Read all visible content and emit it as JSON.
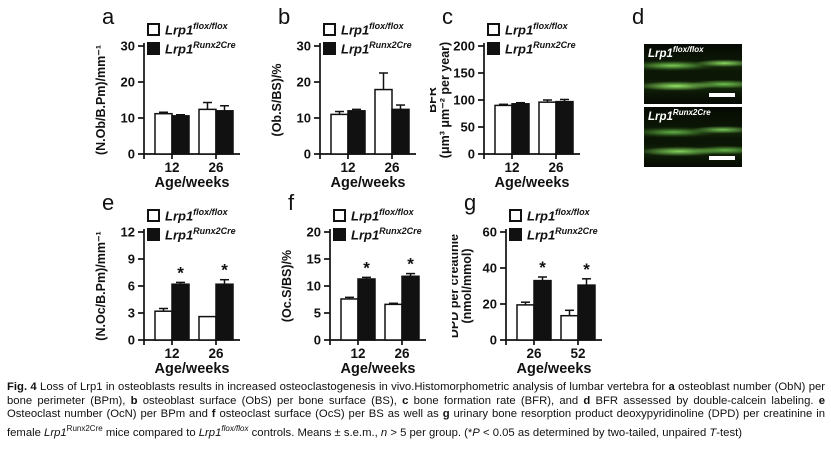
{
  "figure": {
    "background": "#ffffff",
    "text_color": "#111111",
    "legend": {
      "control": {
        "base": "Lrp1",
        "sup": "flox/flox"
      },
      "mutant": {
        "base": "Lrp1",
        "sup": "Runx2Cre"
      }
    },
    "panel_d": {
      "label": "d",
      "calcein_color": "#4db82e",
      "images": [
        {
          "base": "Lrp1",
          "sup": "flox/flox"
        },
        {
          "base": "Lrp1",
          "sup": "Runx2Cre"
        }
      ]
    },
    "caption_segments": [
      {
        "t": "Fig. 4",
        "s": "bold"
      },
      {
        "t": " Loss of Lrp1 in osteoblasts results in increased osteoclastogenesis in vivo.Histomorphometric analysis of lumbar vertebra for "
      },
      {
        "t": "a",
        "s": "bold"
      },
      {
        "t": " osteoblast number (ObN) per bone perimeter (BPm), "
      },
      {
        "t": "b",
        "s": "bold"
      },
      {
        "t": " osteoblast surface (ObS) per bone surface (BS), "
      },
      {
        "t": "c",
        "s": "bold"
      },
      {
        "t": " bone formation rate (BFR), and "
      },
      {
        "t": "d",
        "s": "bold"
      },
      {
        "t": " BFR assessed by double-calcein labeling. "
      },
      {
        "t": "e",
        "s": "bold"
      },
      {
        "t": " Osteoclast number (OcN) per BPm and "
      },
      {
        "t": "f",
        "s": "bold"
      },
      {
        "t": " osteoclast surface (OcS) per BS as well as "
      },
      {
        "t": "g",
        "s": "bold"
      },
      {
        "t": " urinary bone resorption product deoxypyridinoline (DPD) per creatinine in female "
      },
      {
        "t": "Lrp1",
        "s": "italic"
      },
      {
        "t": "Runx2Cre",
        "s": "sup"
      },
      {
        "t": " mice compared to "
      },
      {
        "t": "Lrp1",
        "s": "italic"
      },
      {
        "t": "flox/flox",
        "s": "italic-sup"
      },
      {
        "t": " controls. Means ± s.e.m., "
      },
      {
        "t": "n",
        "s": "italic"
      },
      {
        "t": " > 5 per group. (*"
      },
      {
        "t": "P",
        "s": "italic"
      },
      {
        "t": " < 0.05 as determined by two-tailed, unpaired "
      },
      {
        "t": "T",
        "s": "italic"
      },
      {
        "t": "-test)"
      }
    ]
  },
  "chart_data": [
    {
      "panel": "a",
      "type": "bar",
      "grid": false,
      "legend_position": "top-left",
      "categories": [
        "12",
        "26"
      ],
      "xlabel": "Age/weeks",
      "ylabel": "(N.Ob/B.Pm)/mm⁻¹",
      "ylabel2": "",
      "ylim": [
        0,
        30
      ],
      "yticks": [
        0,
        10,
        20,
        30
      ],
      "series": [
        {
          "name": "Lrp1 flox/flox",
          "fill": "#ffffff",
          "values": [
            11.2,
            12.4
          ],
          "errors": [
            0.4,
            1.9
          ],
          "sig": [
            "",
            ""
          ]
        },
        {
          "name": "Lrp1 Runx2Cre",
          "fill": "#111111",
          "values": [
            10.6,
            12.0
          ],
          "errors": [
            0.3,
            1.4
          ],
          "sig": [
            "",
            ""
          ]
        }
      ]
    },
    {
      "panel": "b",
      "type": "bar",
      "grid": false,
      "legend_position": "top-left",
      "categories": [
        "12",
        "26"
      ],
      "xlabel": "Age/weeks",
      "ylabel": "(Ob.S/BS)/%",
      "ylabel2": "",
      "ylim": [
        0,
        30
      ],
      "yticks": [
        0,
        10,
        20,
        30
      ],
      "series": [
        {
          "name": "Lrp1 flox/flox",
          "fill": "#ffffff",
          "values": [
            11.0,
            17.9
          ],
          "errors": [
            0.8,
            4.6
          ],
          "sig": [
            "",
            ""
          ]
        },
        {
          "name": "Lrp1 Runx2Cre",
          "fill": "#111111",
          "values": [
            12.0,
            12.4
          ],
          "errors": [
            0.4,
            1.2
          ],
          "sig": [
            "",
            ""
          ]
        }
      ]
    },
    {
      "panel": "c",
      "type": "bar",
      "grid": false,
      "legend_position": "top-left",
      "categories": [
        "12",
        "26"
      ],
      "xlabel": "Age/weeks",
      "ylabel": "BFR",
      "ylabel2": "(μm³ μm⁻² per year)",
      "ylim": [
        0,
        200
      ],
      "yticks": [
        0,
        50,
        100,
        150,
        200
      ],
      "series": [
        {
          "name": "Lrp1 flox/flox",
          "fill": "#ffffff",
          "values": [
            90,
            96
          ],
          "errors": [
            2,
            4
          ],
          "sig": [
            "",
            ""
          ]
        },
        {
          "name": "Lrp1 Runx2Cre",
          "fill": "#111111",
          "values": [
            93,
            97
          ],
          "errors": [
            2,
            4
          ],
          "sig": [
            "",
            ""
          ]
        }
      ]
    },
    {
      "panel": "e",
      "type": "bar",
      "grid": false,
      "legend_position": "top-left",
      "categories": [
        "12",
        "26"
      ],
      "xlabel": "Age/weeks",
      "ylabel": "(N.Oc/B.Pm)/mm⁻¹",
      "ylabel2": "",
      "ylim": [
        0,
        12
      ],
      "yticks": [
        0,
        3,
        6,
        9,
        12
      ],
      "series": [
        {
          "name": "Lrp1 flox/flox",
          "fill": "#ffffff",
          "values": [
            3.2,
            2.6
          ],
          "errors": [
            0.3,
            0
          ],
          "sig": [
            "",
            ""
          ]
        },
        {
          "name": "Lrp1 Runx2Cre",
          "fill": "#111111",
          "values": [
            6.2,
            6.2
          ],
          "errors": [
            0.2,
            0.5
          ],
          "sig": [
            "*",
            "*"
          ]
        }
      ]
    },
    {
      "panel": "f",
      "type": "bar",
      "grid": false,
      "legend_position": "top-left",
      "categories": [
        "12",
        "26"
      ],
      "xlabel": "Age/weeks",
      "ylabel": "(Oc.S/BS)/%",
      "ylabel2": "",
      "ylim": [
        0,
        20
      ],
      "yticks": [
        0,
        5,
        10,
        15,
        20
      ],
      "series": [
        {
          "name": "Lrp1 flox/flox",
          "fill": "#ffffff",
          "values": [
            7.6,
            6.6
          ],
          "errors": [
            0.3,
            0.2
          ],
          "sig": [
            "",
            ""
          ]
        },
        {
          "name": "Lrp1 Runx2Cre",
          "fill": "#111111",
          "values": [
            11.3,
            11.8
          ],
          "errors": [
            0.3,
            0.5
          ],
          "sig": [
            "*",
            "*"
          ]
        }
      ]
    },
    {
      "panel": "g",
      "type": "bar",
      "grid": false,
      "legend_position": "top-left",
      "categories": [
        "26",
        "52"
      ],
      "xlabel": "Age/weeks",
      "ylabel": "DPD per creatinie",
      "ylabel2": "(nmol/mmol)",
      "ylim": [
        0,
        60
      ],
      "yticks": [
        0,
        20,
        40,
        60
      ],
      "series": [
        {
          "name": "Lrp1 flox/flox",
          "fill": "#ffffff",
          "values": [
            19.5,
            13.5
          ],
          "errors": [
            1.5,
            3
          ],
          "sig": [
            "",
            ""
          ]
        },
        {
          "name": "Lrp1 Runx2Cre",
          "fill": "#111111",
          "values": [
            33,
            30.5
          ],
          "errors": [
            2,
            3.5
          ],
          "sig": [
            "*",
            "*"
          ]
        }
      ]
    }
  ]
}
